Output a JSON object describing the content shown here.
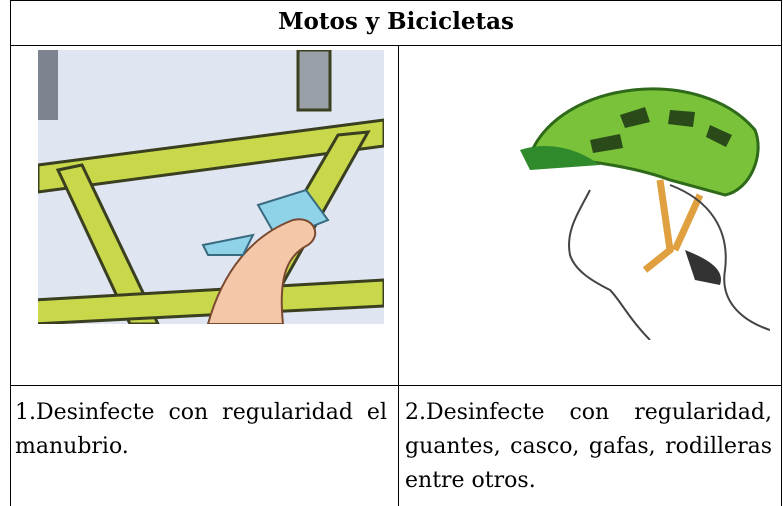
{
  "table": {
    "title": "Motos y Bicicletas",
    "rows": [
      [
        "1.Desinfecte con regularidad el manubrio.",
        "2.Desinfecte con regularidad, guantes, casco, gafas, rodilleras entre otros."
      ]
    ]
  }
}
